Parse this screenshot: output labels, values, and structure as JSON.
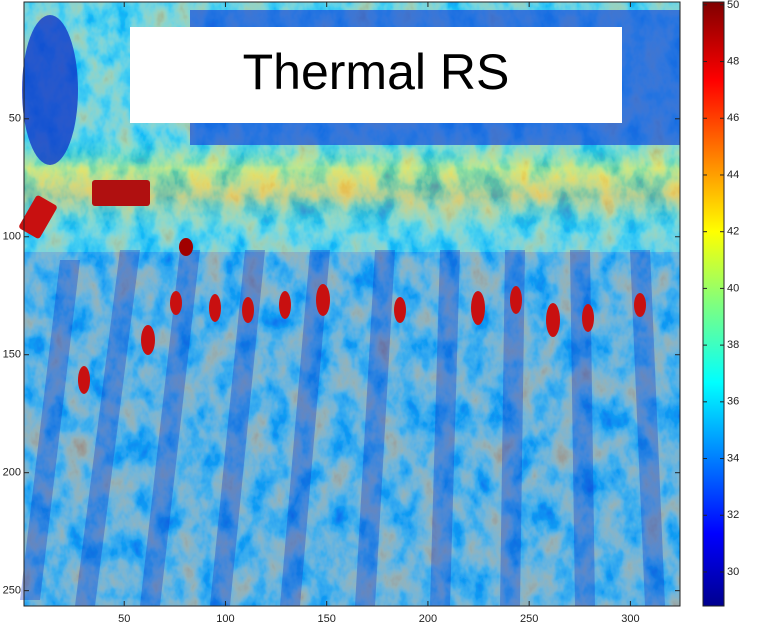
{
  "chart_data": {
    "type": "heatmap",
    "title": "Thermal RS",
    "xlim": [
      0.5,
      324.5
    ],
    "ylim": [
      0.5,
      256.5
    ],
    "xticks": [
      50,
      100,
      150,
      200,
      250,
      300
    ],
    "yticks": [
      50,
      100,
      150,
      200,
      250
    ],
    "colorbar": {
      "clim": [
        28.8,
        50.1
      ],
      "ticks": [
        30,
        32,
        34,
        36,
        38,
        40,
        42,
        44,
        46,
        48,
        50
      ]
    }
  }
}
